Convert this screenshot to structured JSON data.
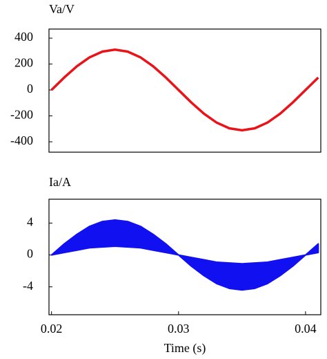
{
  "chart_data": [
    {
      "type": "line",
      "title": "Va/V",
      "color": "#e8141a",
      "x": [
        0.02,
        0.021,
        0.022,
        0.023,
        0.024,
        0.025,
        0.026,
        0.027,
        0.028,
        0.029,
        0.03,
        0.031,
        0.032,
        0.033,
        0.034,
        0.035,
        0.036,
        0.037,
        0.038,
        0.039,
        0.04,
        0.041
      ],
      "values": [
        0,
        96,
        183,
        252,
        296,
        311,
        296,
        252,
        183,
        96,
        0,
        -96,
        -183,
        -252,
        -296,
        -311,
        -296,
        -252,
        -183,
        -96,
        0,
        96
      ],
      "xlim": [
        0.0198,
        0.0412
      ],
      "ylim": [
        -480,
        470
      ],
      "yticks": [
        400,
        200,
        0,
        -200,
        -400
      ]
    },
    {
      "type": "band",
      "title": "Ia/A",
      "color": "#1010f0",
      "xlabel": "Time (s)",
      "x": [
        0.02,
        0.021,
        0.022,
        0.023,
        0.024,
        0.025,
        0.026,
        0.027,
        0.028,
        0.029,
        0.03,
        0.031,
        0.032,
        0.033,
        0.034,
        0.035,
        0.036,
        0.037,
        0.038,
        0.039,
        0.04,
        0.041
      ],
      "upper": [
        0,
        1.4,
        2.6,
        3.6,
        4.2,
        4.4,
        4.2,
        3.6,
        2.6,
        1.4,
        0,
        -0.3,
        -0.6,
        -0.9,
        -1.0,
        -1.1,
        -1.0,
        -0.9,
        -0.6,
        -0.3,
        0,
        1.4
      ],
      "lower": [
        0,
        0.3,
        0.6,
        0.9,
        1.0,
        1.1,
        1.0,
        0.9,
        0.6,
        0.3,
        0,
        -1.4,
        -2.6,
        -3.6,
        -4.2,
        -4.4,
        -4.2,
        -3.6,
        -2.6,
        -1.4,
        0,
        0.3
      ],
      "xlim": [
        0.0198,
        0.0412
      ],
      "ylim": [
        -7.5,
        7
      ],
      "yticks": [
        4,
        0,
        -4
      ],
      "xticks": [
        0.02,
        0.03,
        0.04
      ]
    }
  ]
}
